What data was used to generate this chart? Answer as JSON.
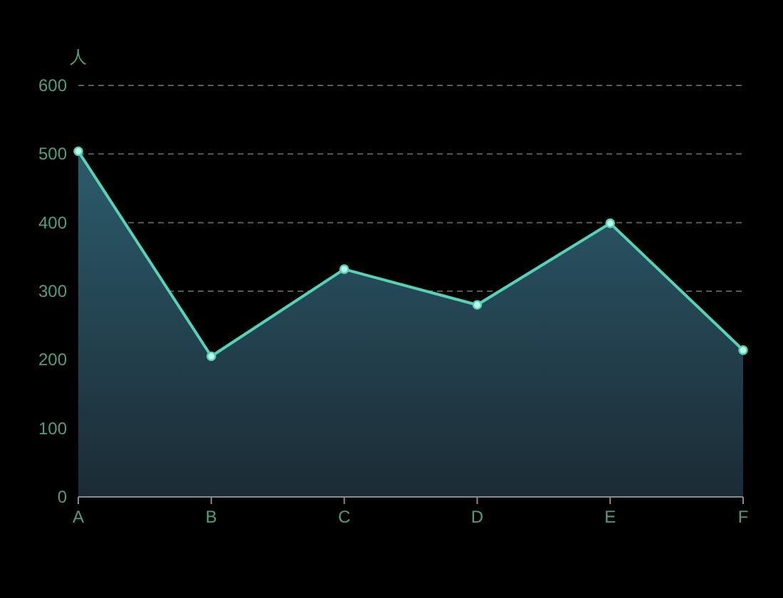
{
  "chart_data": {
    "type": "area",
    "ylabel": "人",
    "categories": [
      "A",
      "B",
      "C",
      "D",
      "E",
      "F"
    ],
    "series": [
      {
        "color": "#4fd6b4",
        "values": [
          504,
          205,
          332,
          280,
          399,
          214
        ]
      }
    ],
    "ylim": [
      0,
      600
    ],
    "yticks": [
      0,
      100,
      200,
      300,
      400,
      500,
      600
    ],
    "grid": "y",
    "marker": "circle"
  }
}
